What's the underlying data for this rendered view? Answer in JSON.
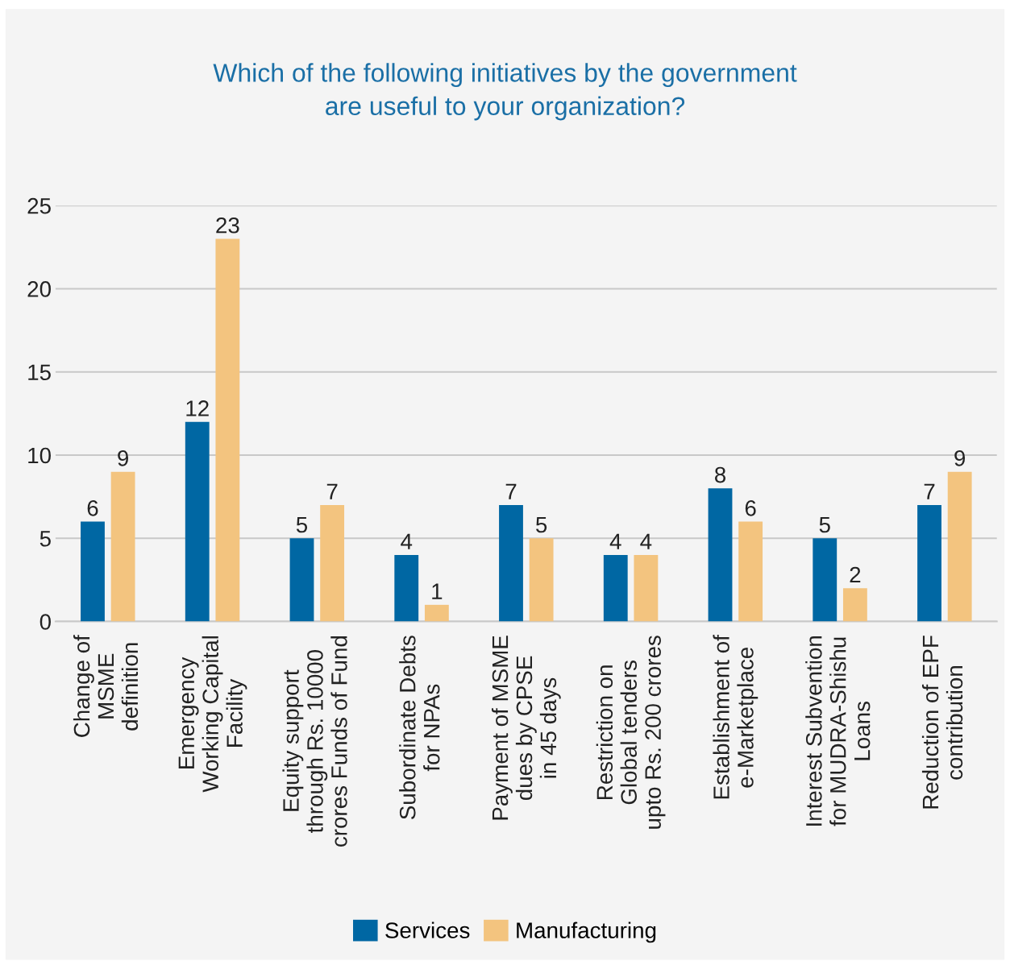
{
  "chart_data": {
    "type": "bar",
    "title": "Which of the following initiatives by the government\nare useful to your organization?",
    "categories": [
      "Change of\nMSME\ndefinition",
      "Emergency\nWorking Capital\nFacility",
      "Equity support\nthrough Rs. 10000\ncrores Funds of Fund",
      "Subordinate Debts\nfor NPAs",
      "Payment of MSME\ndues by CPSE\nin 45 days",
      "Restriction on\nGlobal tenders\nupto Rs. 200 crores",
      "Establishment of\ne-Marketplace",
      "Interest Subvention\nfor MUDRA-Shishu\nLoans",
      "Reduction of EPF\ncontribution"
    ],
    "series": [
      {
        "name": "Services",
        "color": "#0067a3",
        "values": [
          6,
          12,
          5,
          4,
          7,
          4,
          8,
          5,
          7
        ]
      },
      {
        "name": "Manufacturing",
        "color": "#f3c47f",
        "values": [
          9,
          23,
          7,
          1,
          5,
          4,
          6,
          2,
          9
        ]
      }
    ],
    "ylim": [
      0,
      25
    ],
    "yticks": [
      0,
      5,
      10,
      15,
      20,
      25
    ],
    "grid": "y",
    "legend": "bottom",
    "data_labels": true
  }
}
